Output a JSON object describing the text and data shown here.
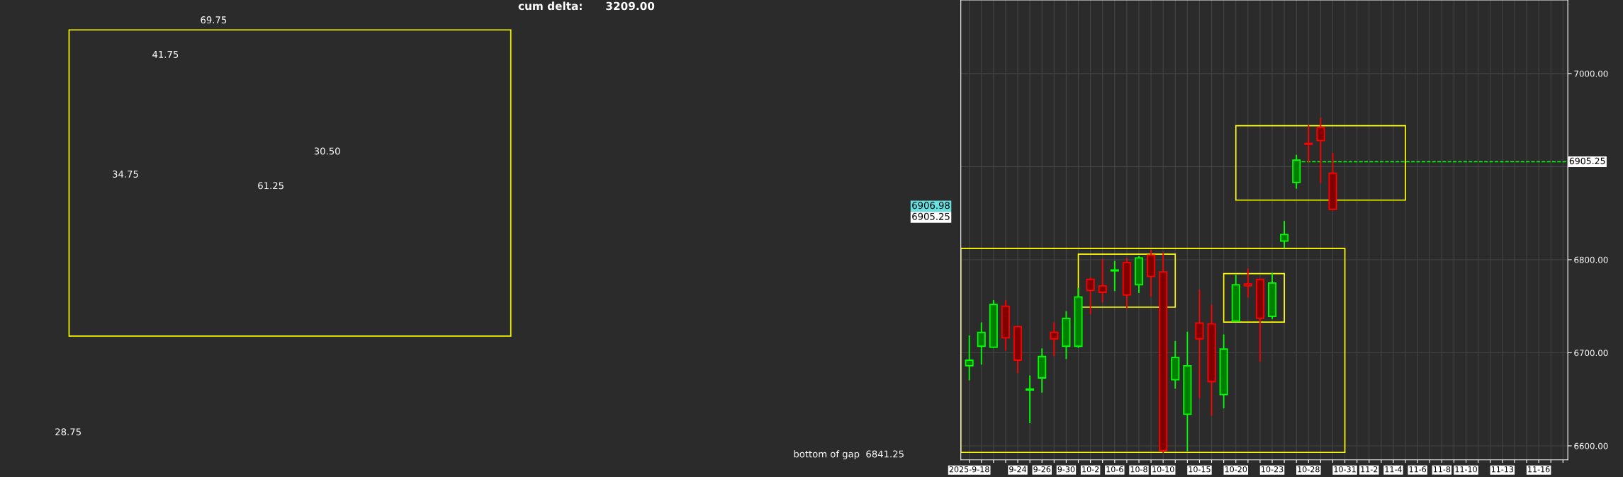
{
  "chart_data": [
    {
      "type": "other",
      "title": "cum delta:      3209.00",
      "annotations": [
        "69.75",
        "41.75",
        "34.75",
        "61.25",
        "30.50",
        "28.75",
        "bottom of gap  6841.25",
        "6906.98",
        "6905.25"
      ]
    },
    {
      "type": "candlestick",
      "categories": [
        "2025-9-18",
        null,
        null,
        null,
        "9-24",
        null,
        "9-26",
        null,
        "9-30",
        null,
        "10-2",
        null,
        "10-6",
        null,
        "10-8",
        null,
        "10-10",
        null,
        null,
        "10-15",
        null,
        null,
        "10-20",
        null,
        null,
        "10-23",
        null,
        null,
        "10-28",
        null,
        null,
        "10-31",
        null,
        "11-2",
        null,
        "11-4",
        null,
        "11-6",
        null,
        "11-8",
        null,
        "11-10",
        null,
        null,
        "11-13",
        null,
        null,
        "11-16",
        null,
        null
      ],
      "ohlc": [
        [
          6686,
          6718,
          6671,
          6692
        ],
        [
          6707,
          6732,
          6688,
          6722
        ],
        [
          6706,
          6756,
          6706,
          6752
        ],
        [
          6750,
          6756,
          6703,
          6716
        ],
        [
          6728,
          6728,
          6679,
          6692
        ],
        [
          6660,
          6675,
          6625,
          6661
        ],
        [
          6673,
          6704,
          6658,
          6696
        ],
        [
          6722,
          6732,
          6697,
          6715
        ],
        [
          6707,
          6744,
          6694,
          6737
        ],
        [
          6707,
          6769,
          6706,
          6760
        ],
        [
          6779,
          6780,
          6742,
          6767
        ],
        [
          6772,
          6800,
          6755,
          6765
        ],
        [
          6788,
          6798,
          6767,
          6789
        ],
        [
          6797,
          6801,
          6748,
          6762
        ],
        [
          6773,
          6803,
          6765,
          6802
        ],
        [
          6805,
          6810,
          6761,
          6782
        ],
        [
          6787,
          6807,
          6593,
          6595
        ],
        [
          6671,
          6712,
          6662,
          6695
        ],
        [
          6634,
          6722,
          6595,
          6686
        ],
        [
          6732,
          6767,
          6652,
          6715
        ],
        [
          6731,
          6751,
          6633,
          6669
        ],
        [
          6655,
          6719,
          6641,
          6704
        ],
        [
          6734,
          6783,
          6734,
          6773
        ],
        [
          6774,
          6790,
          6760,
          6772
        ],
        [
          6779,
          6779,
          6691,
          6737
        ],
        [
          6739,
          6785,
          6737,
          6775
        ],
        [
          6820,
          6841,
          6813,
          6827
        ],
        [
          6883,
          6912,
          6877,
          6907
        ],
        [
          6925,
          6944,
          6905,
          6924
        ],
        [
          6942,
          6952,
          6883,
          6928
        ],
        [
          6893,
          6914,
          6854,
          6854
        ],
        null,
        null,
        null,
        null,
        null,
        null,
        null,
        null,
        null,
        null,
        null,
        null,
        null,
        null,
        null,
        null,
        null,
        null,
        null
      ],
      "colors": [
        "#00ff00",
        "#00ff00",
        "#00ff00",
        "#ff0000",
        "#ff0000",
        "#00ff00",
        "#00ff00",
        "#ff0000",
        "#00ff00",
        "#00ff00",
        "#ff0000",
        "#ff0000",
        "#00ff00",
        "#ff0000",
        "#00ff00",
        "#ff0000",
        "#ff0000",
        "#00ff00",
        "#00ff00",
        "#ff0000",
        "#ff0000",
        "#00ff00",
        "#00ff00",
        "#ff0000",
        "#ff0000",
        "#00ff00",
        "#00ff00",
        "#00ff00",
        "#ff0000",
        "#ff0000",
        "#ff0000",
        null,
        null,
        null,
        null,
        null,
        null,
        null,
        null,
        null,
        null,
        null,
        null,
        null,
        null,
        null,
        null,
        null,
        null,
        null
      ],
      "ylim": [
        6585,
        7079
      ],
      "yticks": [
        {
          "value": 6600,
          "label": "6600.00"
        },
        {
          "value": 6700,
          "label": "6700.00"
        },
        {
          "value": 6800,
          "label": "6800.00"
        },
        {
          "value": 6900,
          "label": null
        },
        {
          "value": 7000,
          "label": "7000.00"
        }
      ],
      "ref_lines": [
        {
          "axis": "y",
          "value": 6905.25,
          "label": "6905.25",
          "color": "#00ff00",
          "line_style": "dashed"
        }
      ],
      "grid": true
    }
  ]
}
